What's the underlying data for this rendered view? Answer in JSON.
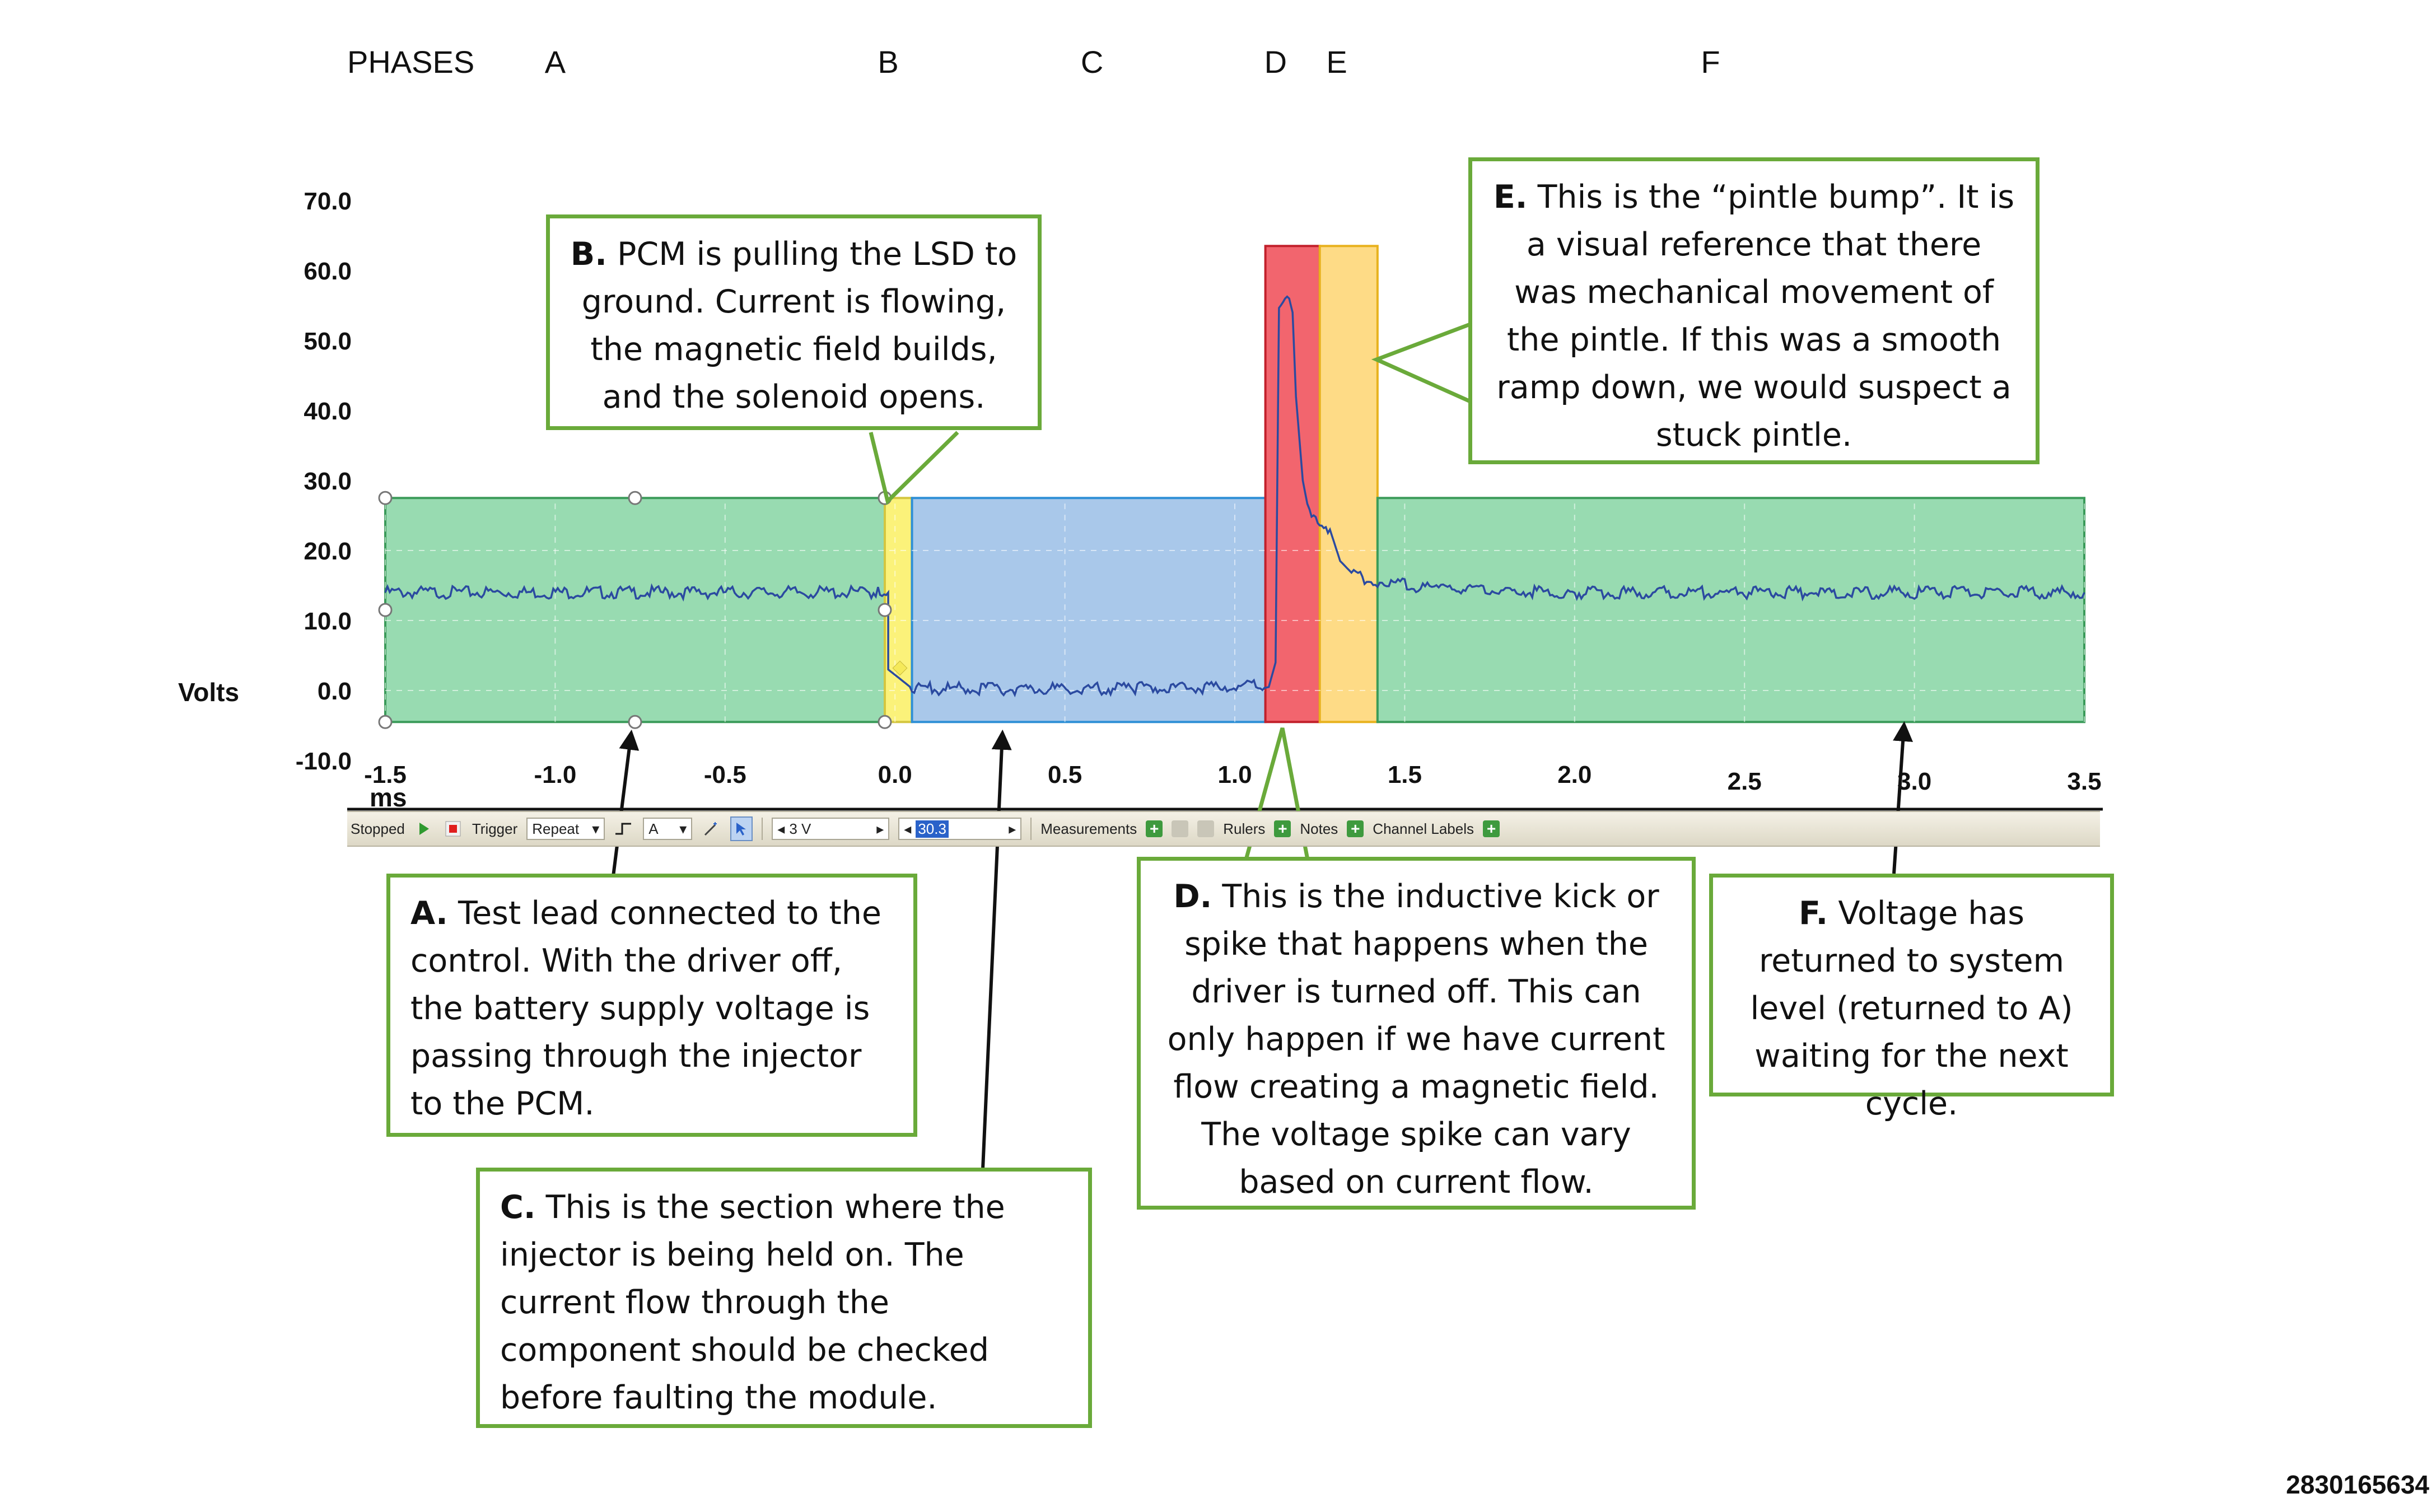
{
  "phases": {
    "heading": "PHASES",
    "letters": [
      {
        "label": "A",
        "x": -1.0
      },
      {
        "label": "B",
        "x": -0.02
      },
      {
        "label": "C",
        "x": 0.58
      },
      {
        "label": "D",
        "x": 1.12
      },
      {
        "label": "E",
        "x": 1.3
      },
      {
        "label": "F",
        "x": 2.4
      }
    ]
  },
  "chart_data": {
    "type": "line",
    "title": "",
    "xlabel": "ms",
    "ylabel": "Volts",
    "xlim": [
      -1.5,
      3.5
    ],
    "ylim": [
      -10,
      70
    ],
    "x_ticks": [
      "-1.5",
      "-1.0",
      "-0.5",
      "0.0",
      "0.5",
      "1.0",
      "1.5",
      "2.0",
      "2.5",
      "3.0",
      "3.5"
    ],
    "y_ticks": [
      "70.0",
      "60.0",
      "50.0",
      "40.0",
      "30.0",
      "20.0",
      "10.0",
      "0.0",
      "-10.0"
    ],
    "grid": true,
    "series": [
      {
        "color": "#2b4aa0",
        "points": [
          [
            -1.5,
            14.0
          ],
          [
            -0.05,
            14.0
          ],
          [
            -0.02,
            14.0
          ],
          [
            -0.02,
            3.0
          ],
          [
            0.05,
            0.3
          ],
          [
            0.3,
            0.2
          ],
          [
            0.7,
            0.3
          ],
          [
            1.05,
            0.6
          ],
          [
            1.1,
            0.5
          ],
          [
            1.12,
            4.0
          ],
          [
            1.13,
            55.5
          ],
          [
            1.16,
            56.0
          ],
          [
            1.17,
            54.0
          ],
          [
            1.18,
            42.0
          ],
          [
            1.2,
            30.0
          ],
          [
            1.22,
            25.0
          ],
          [
            1.25,
            24.0
          ],
          [
            1.28,
            23.0
          ],
          [
            1.31,
            18.5
          ],
          [
            1.35,
            16.5
          ],
          [
            1.42,
            15.5
          ],
          [
            1.6,
            14.5
          ],
          [
            2.0,
            14.0
          ],
          [
            3.5,
            14.0
          ]
        ]
      }
    ],
    "phase_regions": [
      {
        "label": "A",
        "x0": -1.5,
        "x1": -0.03,
        "y0": -4.5,
        "y1": 27.5,
        "fill": "#98dbb1",
        "stroke": "#3b9b5a"
      },
      {
        "label": "B",
        "x0": -0.03,
        "x1": 0.05,
        "y0": -4.5,
        "y1": 27.5,
        "fill": "#fbf27a",
        "stroke": "#d4c640"
      },
      {
        "label": "C",
        "x0": 0.05,
        "x1": 1.09,
        "y0": -4.5,
        "y1": 27.5,
        "fill": "#a9c8ea",
        "stroke": "#2e8fd6"
      },
      {
        "label": "D",
        "x0": 1.09,
        "x1": 1.25,
        "y0": -4.5,
        "y1": 63.5,
        "fill": "#f2656e",
        "stroke": "#c2202b"
      },
      {
        "label": "E",
        "x0": 1.25,
        "x1": 1.42,
        "y0": -4.5,
        "y1": 63.5,
        "fill": "#fedb86",
        "stroke": "#e8b21e"
      },
      {
        "label": "F",
        "x0": 1.42,
        "x1": 3.5,
        "y0": -4.5,
        "y1": 27.5,
        "fill": "#98dbb1",
        "stroke": "#3b9b5a"
      }
    ]
  },
  "callouts": [
    {
      "tag": "A.",
      "text": "Test lead connected to the control. With the driver off, the battery supply voltage is passing through the injector to the PCM."
    },
    {
      "tag": "B.",
      "text": "PCM is pulling the LSD to ground. Current is flowing, the magnetic field builds, and the solenoid opens."
    },
    {
      "tag": "C.",
      "text": "This is the section where the injector is being held on. The current flow through the component should be checked before faulting the module."
    },
    {
      "tag": "D.",
      "text": "This is the inductive kick or spike that happens when the driver is turned off. This can only happen if we have current flow creating a magnetic field. The voltage spike can vary based on current flow."
    },
    {
      "tag": "E.",
      "text": "This is the “pintle bump”. It is a visual reference that there was mechanical movement of the pintle. If this was a smooth ramp down, we would suspect a stuck pintle."
    },
    {
      "tag": "F.",
      "text": "Voltage has returned to system level (returned to A) waiting for the next cycle."
    }
  ],
  "toolbar": {
    "status": "Stopped",
    "trigger_label": "Trigger",
    "trigger_mode": "Repeat",
    "channel": "A",
    "threshold": "3 V",
    "pretrigger": "30.3",
    "measurements_label": "Measurements",
    "rulers_label": "Rulers",
    "notes_label": "Notes",
    "channel_labels_label": "Channel Labels"
  },
  "image_id": "2830165634",
  "colors": {
    "callout_border": "#6aaa3a",
    "trace": "#2b4aa0",
    "arrow": "#111111"
  }
}
